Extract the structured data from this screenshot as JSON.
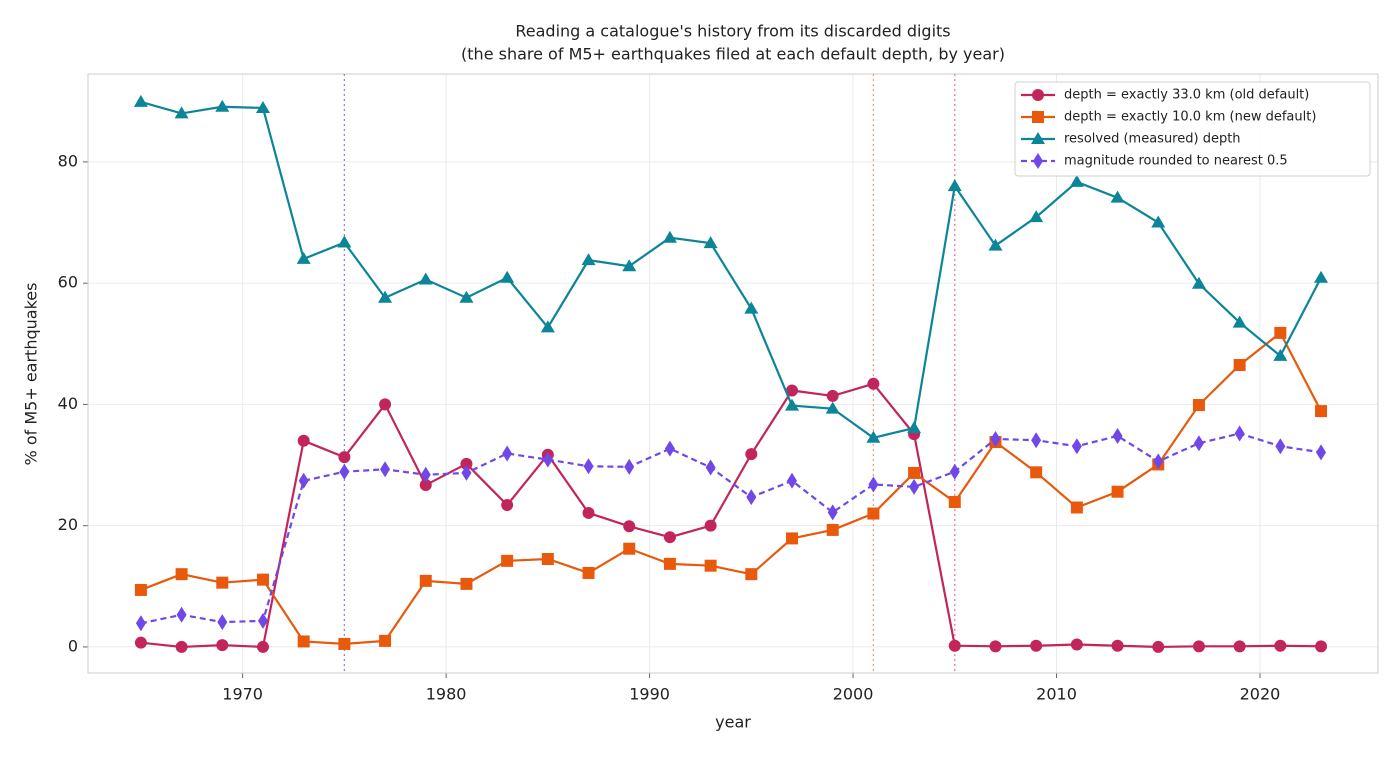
{
  "chart_data": {
    "type": "line",
    "title": "Reading a catalogue's history from its discarded digits",
    "subtitle": "(the share of M5+ earthquakes filed at each default depth, by year)",
    "x_label": "year",
    "y_label": "% of M5+ earthquakes",
    "x": [
      1965,
      1967,
      1969,
      1971,
      1973,
      1975,
      1977,
      1979,
      1981,
      1983,
      1985,
      1987,
      1989,
      1991,
      1993,
      1995,
      1997,
      1999,
      2001,
      2003,
      2005,
      2007,
      2009,
      2011,
      2013,
      2015,
      2017,
      2019,
      2021,
      2023
    ],
    "series": [
      {
        "name": "depth = exactly 33.0 km (old default)",
        "color": "#c2255c",
        "marker": "circle",
        "linestyle": "solid",
        "values": [
          0.7,
          0,
          0.3,
          0,
          34,
          31.3,
          40,
          26.7,
          30.2,
          23.4,
          31.7,
          22.1,
          19.9,
          18.1,
          20,
          31.8,
          42.3,
          41.4,
          43.4,
          35.1,
          0.2,
          0.1,
          0.2,
          0.4,
          0.2,
          0,
          0.1,
          0.1,
          0.2,
          0.1
        ]
      },
      {
        "name": "depth = exactly 10.0 km (new default)",
        "color": "#e8590c",
        "marker": "square",
        "linestyle": "solid",
        "values": [
          9.4,
          12,
          10.6,
          11.1,
          0.9,
          0.5,
          1.0,
          10.9,
          10.4,
          14.2,
          14.5,
          12.2,
          16.2,
          13.7,
          13.4,
          12.0,
          17.9,
          19.3,
          22.0,
          28.7,
          23.9,
          33.8,
          28.8,
          23.0,
          25.6,
          30.1,
          39.9,
          46.5,
          51.8,
          38.9
        ]
      },
      {
        "name": "resolved (measured) depth",
        "color": "#0c8599",
        "marker": "triangle",
        "linestyle": "solid",
        "values": [
          89.9,
          88,
          89.1,
          88.9,
          64.0,
          66.7,
          57.6,
          60.6,
          57.6,
          60.9,
          52.7,
          63.8,
          62.8,
          67.5,
          66.6,
          55.8,
          39.8,
          39.3,
          34.5,
          36.1,
          76.0,
          66.2,
          70.9,
          76.7,
          74.1,
          70.0,
          59.9,
          53.5,
          48.0,
          60.9
        ]
      },
      {
        "name": "magnitude rounded to nearest 0.5",
        "color": "#7048e8",
        "marker": "diamond",
        "linestyle": "dashed",
        "values": [
          3.9,
          5.3,
          4.1,
          4.3,
          27.4,
          28.9,
          29.3,
          28.4,
          28.7,
          31.9,
          30.9,
          29.8,
          29.7,
          32.7,
          29.6,
          24.7,
          27.4,
          22.2,
          26.8,
          26.4,
          28.9,
          34.3,
          34.1,
          33.1,
          34.8,
          30.6,
          33.6,
          35.2,
          33.1,
          32.1
        ]
      }
    ],
    "vlines": [
      {
        "x": 1975,
        "color": "#9a86b8"
      },
      {
        "x": 2001,
        "color": "#f4a07a"
      },
      {
        "x": 2005,
        "color": "#e0809a"
      }
    ],
    "xlim": [
      1962.4,
      2025.8
    ],
    "xticks": [
      1970,
      1980,
      1990,
      2000,
      2010,
      2020
    ],
    "ylim": [
      -4.3,
      94.5
    ],
    "yticks": [
      0,
      20,
      40,
      60,
      80
    ],
    "grid": true,
    "legend": "upper right"
  }
}
